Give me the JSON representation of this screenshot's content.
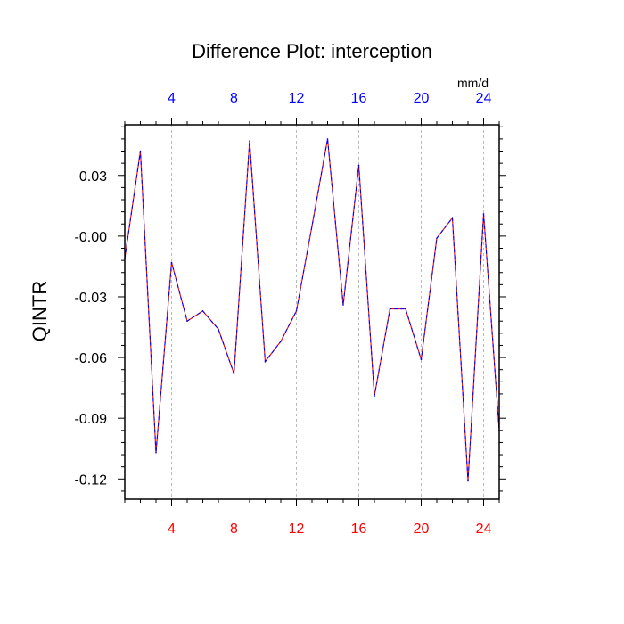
{
  "chart_data": {
    "type": "line",
    "title": "Difference Plot: interception",
    "xlabel": "",
    "ylabel": "QINTR",
    "units": "mm/d",
    "xlim": [
      1,
      25
    ],
    "ylim": [
      -0.13,
      0.055
    ],
    "x_ticks": [
      4,
      8,
      12,
      16,
      20,
      24
    ],
    "x_tick_labels": [
      "4",
      "8",
      "12",
      "16",
      "20",
      "24"
    ],
    "y_ticks": [
      0.03,
      0.0,
      -0.03,
      -0.06,
      -0.09,
      -0.12
    ],
    "y_tick_labels": [
      "0.03",
      "-0.00",
      "-0.03",
      "-0.06",
      "-0.09",
      "-0.12"
    ],
    "grid": "vertical dashed",
    "colors": {
      "bottom_axis_labels": "#ff0000",
      "top_axis_labels": "#0000ff",
      "line_primary": "#ff0000",
      "line_overlay": "#0000ff",
      "frame": "#000000",
      "grid": "#aaaaaa"
    },
    "series": [
      {
        "x": [
          1,
          2,
          3,
          4,
          5,
          6,
          7,
          8,
          9,
          10,
          11,
          12,
          13,
          14,
          15,
          16,
          17,
          18,
          19,
          20,
          21,
          22,
          23,
          24,
          25
        ],
        "values": [
          -0.011,
          0.042,
          -0.107,
          -0.013,
          -0.042,
          -0.037,
          -0.046,
          -0.068,
          0.047,
          -0.062,
          -0.052,
          -0.037,
          0.005,
          0.048,
          -0.034,
          0.035,
          -0.079,
          -0.036,
          -0.036,
          -0.061,
          -0.001,
          0.009,
          -0.121,
          0.011,
          -0.096
        ]
      }
    ]
  }
}
